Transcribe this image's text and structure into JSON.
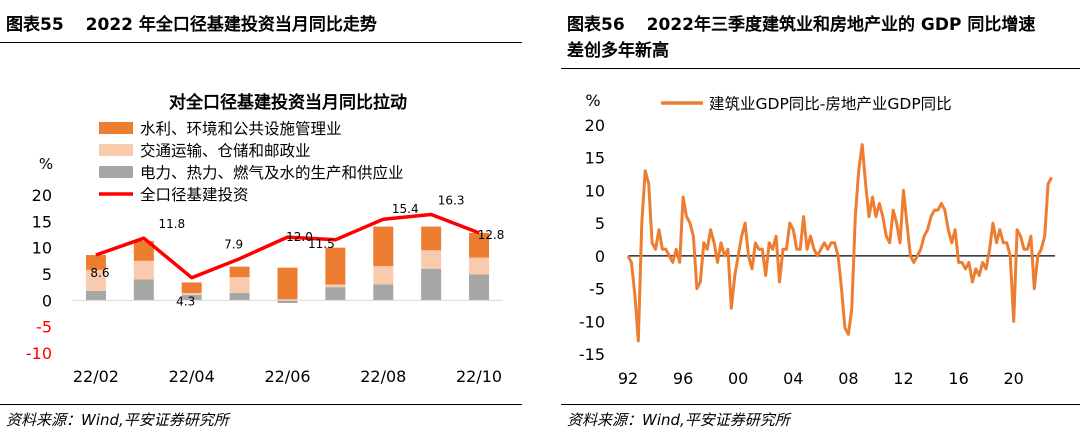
{
  "left_panel": {
    "figure_label": "图表55",
    "figure_title": "2022 年全口径基建投资当月同比走势",
    "source": "资料来源：Wind,平安证券研究所"
  },
  "right_panel": {
    "figure_label": "图表56",
    "figure_title_line1": "2022年三季度建筑业和房地产业的 GDP 同比增速",
    "figure_title_line2": "差创多年新高",
    "source": "资料来源：Wind,平安证券研究所"
  },
  "colors": {
    "water_env": "#ED7D31",
    "transport": "#F8CBAD",
    "utilities": "#A6A6A6",
    "total_line": "#FF0000",
    "gdp_line": "#ED7D31",
    "neg_tick": "#FF0000"
  },
  "chart_data": [
    {
      "type": "bar",
      "title": "对全口径基建投资当月同比拉动",
      "ylabel": "%",
      "ylim": [
        -10,
        20
      ],
      "yticks": [
        "20",
        "15",
        "10",
        "5",
        "0",
        "-5",
        "-10"
      ],
      "categories": [
        "22/02",
        "22/03",
        "22/04",
        "22/05",
        "22/06",
        "22/07",
        "22/08",
        "22/09",
        "22/10"
      ],
      "x_tick_labels": [
        "22/02",
        "22/04",
        "22/06",
        "22/08",
        "22/10"
      ],
      "stacked": true,
      "series": [
        {
          "name": "水利、环境和公共设施管理业",
          "values": [
            2.8,
            3.8,
            2.0,
            2.0,
            6.0,
            7.0,
            7.5,
            4.5,
            4.7
          ]
        },
        {
          "name": "交通运输、仓储和邮政业",
          "values": [
            4.0,
            3.5,
            0.4,
            3.0,
            0.2,
            0.5,
            3.5,
            3.5,
            3.2
          ]
        },
        {
          "name": "电力、热力、燃气及水的生产和供应业",
          "values": [
            1.8,
            4.0,
            1.0,
            1.4,
            -0.5,
            2.5,
            3.0,
            6.0,
            4.9
          ]
        }
      ],
      "line_series": {
        "name": "全口径基建投资",
        "values": [
          8.6,
          11.8,
          4.3,
          7.9,
          12.0,
          11.5,
          15.4,
          16.3,
          12.8
        ],
        "labels": [
          "8.6",
          "11.8",
          "4.3",
          "7.9",
          "12.0",
          "11.5",
          "15.4",
          "16.3",
          "12.8"
        ]
      }
    },
    {
      "type": "line",
      "ylabel": "%",
      "ylim": [
        -15,
        20
      ],
      "yticks": [
        "20",
        "15",
        "10",
        "5",
        "0",
        "-5",
        "-10",
        "-15"
      ],
      "xlim": [
        1992,
        2023
      ],
      "x_tick_values": [
        1992,
        1996,
        2000,
        2004,
        2008,
        2012,
        2016,
        2020
      ],
      "x_tick_labels": [
        "92",
        "96",
        "00",
        "04",
        "08",
        "12",
        "16",
        "20"
      ],
      "series": [
        {
          "name": "建筑业GDP同比-房地产业GDP同比",
          "points": [
            [
              1992.0,
              0
            ],
            [
              1992.25,
              -1
            ],
            [
              1992.5,
              -6
            ],
            [
              1992.75,
              -13
            ],
            [
              1993.0,
              5
            ],
            [
              1993.25,
              13
            ],
            [
              1993.5,
              11
            ],
            [
              1993.75,
              2
            ],
            [
              1994.0,
              1
            ],
            [
              1994.25,
              4
            ],
            [
              1994.5,
              1
            ],
            [
              1994.75,
              1
            ],
            [
              1995.0,
              0
            ],
            [
              1995.25,
              -1
            ],
            [
              1995.5,
              1
            ],
            [
              1995.75,
              -1
            ],
            [
              1996.0,
              9
            ],
            [
              1996.25,
              6
            ],
            [
              1996.5,
              5
            ],
            [
              1996.75,
              3
            ],
            [
              1997.0,
              -5
            ],
            [
              1997.25,
              -4
            ],
            [
              1997.5,
              2
            ],
            [
              1997.75,
              1
            ],
            [
              1998.0,
              4
            ],
            [
              1998.25,
              2
            ],
            [
              1998.5,
              -1
            ],
            [
              1998.75,
              2
            ],
            [
              1999.0,
              0
            ],
            [
              1999.25,
              1
            ],
            [
              1999.5,
              -8
            ],
            [
              1999.75,
              -3
            ],
            [
              2000.0,
              0
            ],
            [
              2000.25,
              3
            ],
            [
              2000.5,
              5
            ],
            [
              2000.75,
              0
            ],
            [
              2001.0,
              -2
            ],
            [
              2001.25,
              2
            ],
            [
              2001.5,
              1
            ],
            [
              2001.75,
              1
            ],
            [
              2002.0,
              -3
            ],
            [
              2002.25,
              2
            ],
            [
              2002.5,
              1
            ],
            [
              2002.75,
              3
            ],
            [
              2003.0,
              -4
            ],
            [
              2003.25,
              1
            ],
            [
              2003.5,
              1
            ],
            [
              2003.75,
              5
            ],
            [
              2004.0,
              4
            ],
            [
              2004.25,
              1
            ],
            [
              2004.5,
              1
            ],
            [
              2004.75,
              6
            ],
            [
              2005.0,
              1
            ],
            [
              2005.25,
              3
            ],
            [
              2005.5,
              1
            ],
            [
              2005.75,
              0
            ],
            [
              2006.0,
              1
            ],
            [
              2006.25,
              2
            ],
            [
              2006.5,
              1
            ],
            [
              2006.75,
              2
            ],
            [
              2007.0,
              2
            ],
            [
              2007.25,
              0
            ],
            [
              2007.5,
              -5
            ],
            [
              2007.75,
              -11
            ],
            [
              2008.0,
              -12
            ],
            [
              2008.25,
              -8
            ],
            [
              2008.5,
              6
            ],
            [
              2008.75,
              13
            ],
            [
              2009.0,
              17
            ],
            [
              2009.25,
              11
            ],
            [
              2009.5,
              6
            ],
            [
              2009.75,
              9
            ],
            [
              2010.0,
              6
            ],
            [
              2010.25,
              8
            ],
            [
              2010.5,
              6
            ],
            [
              2010.75,
              3
            ],
            [
              2011.0,
              2
            ],
            [
              2011.25,
              7
            ],
            [
              2011.5,
              5
            ],
            [
              2011.75,
              2
            ],
            [
              2012.0,
              10
            ],
            [
              2012.25,
              5
            ],
            [
              2012.5,
              0
            ],
            [
              2012.75,
              -1
            ],
            [
              2013.0,
              0
            ],
            [
              2013.25,
              1
            ],
            [
              2013.5,
              3
            ],
            [
              2013.75,
              4
            ],
            [
              2014.0,
              6
            ],
            [
              2014.25,
              7
            ],
            [
              2014.5,
              7
            ],
            [
              2014.75,
              8
            ],
            [
              2015.0,
              7
            ],
            [
              2015.25,
              4
            ],
            [
              2015.5,
              2
            ],
            [
              2015.75,
              4
            ],
            [
              2016.0,
              -1
            ],
            [
              2016.25,
              -1
            ],
            [
              2016.5,
              -2
            ],
            [
              2016.75,
              -1
            ],
            [
              2017.0,
              -4
            ],
            [
              2017.25,
              -2
            ],
            [
              2017.5,
              -3
            ],
            [
              2017.75,
              -1
            ],
            [
              2018.0,
              -2
            ],
            [
              2018.25,
              1
            ],
            [
              2018.5,
              5
            ],
            [
              2018.75,
              2
            ],
            [
              2019.0,
              4
            ],
            [
              2019.25,
              2
            ],
            [
              2019.5,
              2
            ],
            [
              2019.75,
              0
            ],
            [
              2020.0,
              -10
            ],
            [
              2020.25,
              4
            ],
            [
              2020.5,
              3
            ],
            [
              2020.75,
              1
            ],
            [
              2021.0,
              1
            ],
            [
              2021.25,
              3
            ],
            [
              2021.5,
              -5
            ],
            [
              2021.75,
              0
            ],
            [
              2022.0,
              1
            ],
            [
              2022.25,
              3
            ],
            [
              2022.5,
              11
            ],
            [
              2022.75,
              12
            ]
          ]
        }
      ]
    }
  ]
}
